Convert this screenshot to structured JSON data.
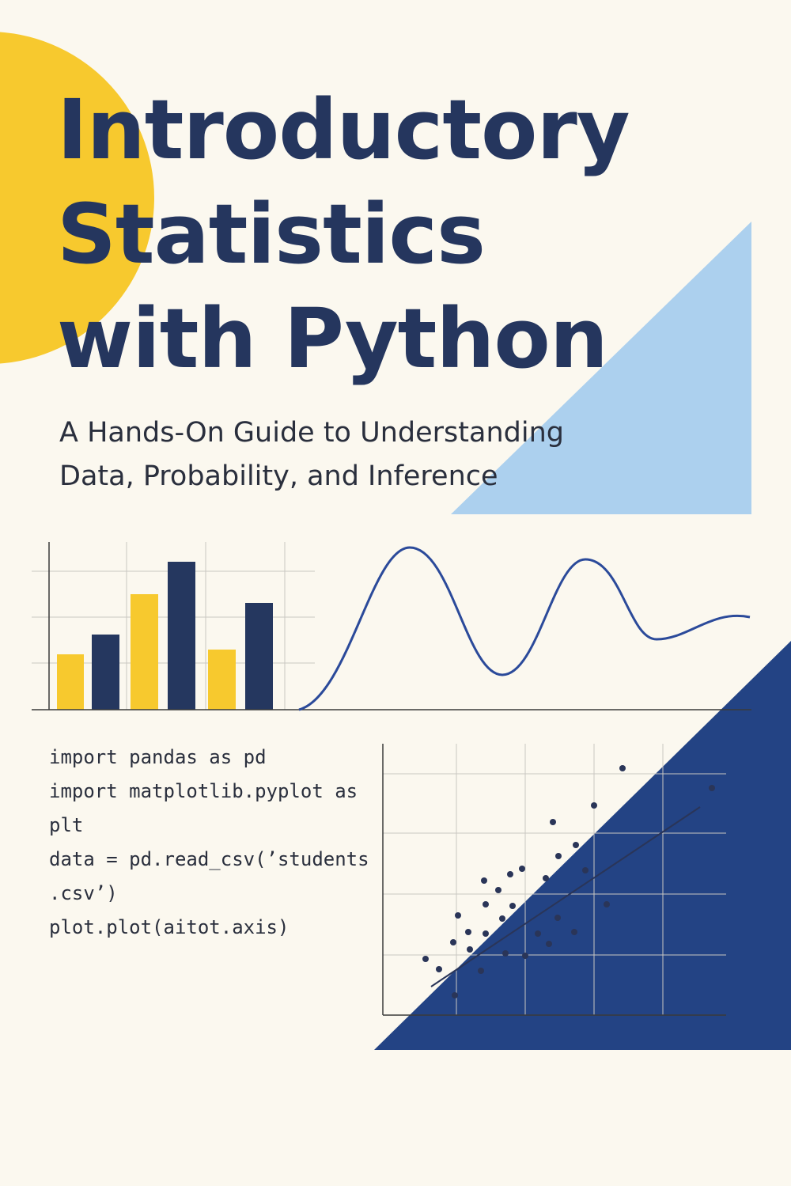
{
  "cover": {
    "title": [
      "Introductory",
      "Statistics",
      "with Python"
    ],
    "subtitle": [
      "A Hands-On Guide to Understanding",
      "Data, Probability, and Inference"
    ],
    "code": [
      "import pandas as pd",
      "import matplotlib.pyplot as",
      "plt",
      "data = pd.read_csv(’students",
      ".csv’)",
      "plot.plot(aitot.axis)"
    ]
  }
}
